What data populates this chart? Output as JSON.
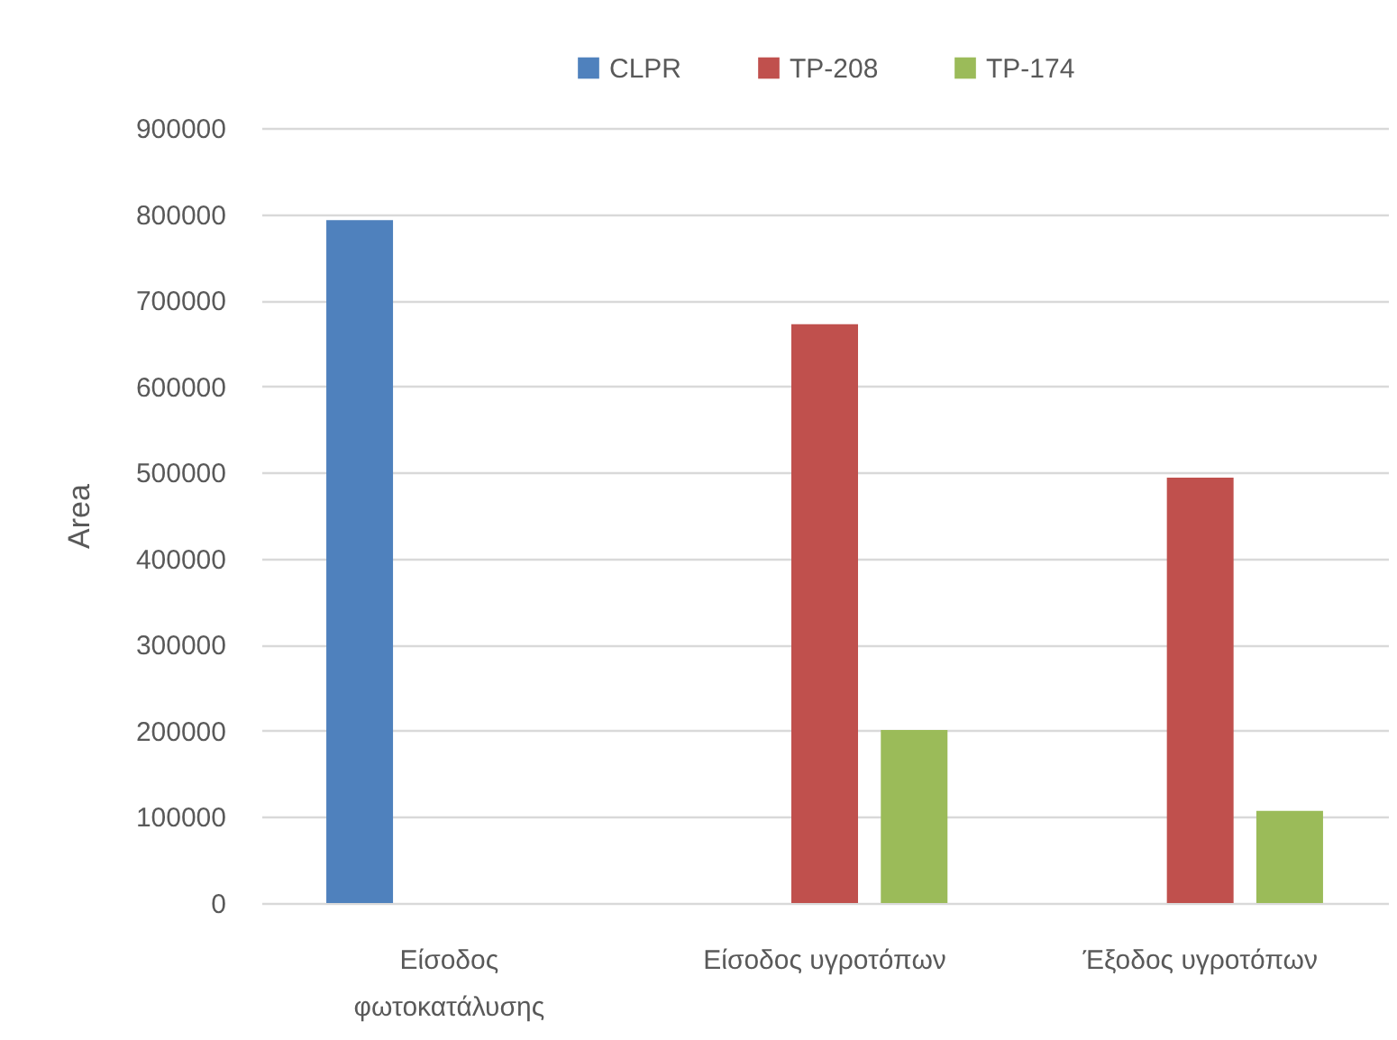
{
  "chart_data": {
    "type": "bar",
    "ylabel": "Area",
    "categories": [
      "Είσοδος φωτοκατάλυσης",
      "Είσοδος υγροτόπων",
      "Έξοδος υγροτόπων"
    ],
    "series": [
      {
        "name": "CLPR",
        "color": "#4f81bd",
        "values": [
          793000,
          null,
          null
        ]
      },
      {
        "name": "TP-208",
        "color": "#c0504d",
        "values": [
          null,
          672000,
          494000
        ]
      },
      {
        "name": "TP-174",
        "color": "#9bbb59",
        "values": [
          null,
          201000,
          107000
        ]
      }
    ],
    "ylim": [
      0,
      900000
    ],
    "yticks": [
      0,
      100000,
      200000,
      300000,
      400000,
      500000,
      600000,
      700000,
      800000,
      900000
    ],
    "grid": "y",
    "legend": "top"
  }
}
